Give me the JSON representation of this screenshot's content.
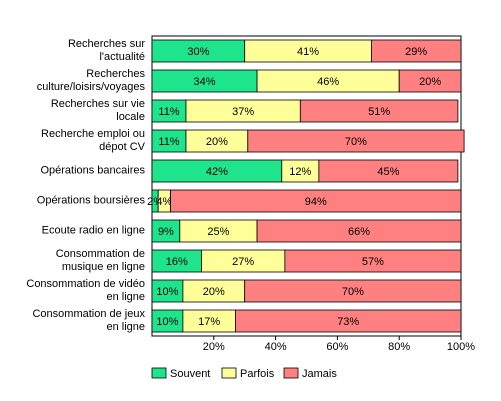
{
  "chart_data": {
    "type": "stacked-barh",
    "categories": [
      "Recherches sur\nl'actualité",
      "Recherches\nculture/loisirs/voyages",
      "Recherches sur vie\nlocale",
      "Recherche emploi ou\ndépot CV",
      "Opérations bancaires",
      "Opérations boursières",
      "Ecoute radio en ligne",
      "Consommation de\nmusique en ligne",
      "Consommation de vidéo\nen ligne",
      "Consommation de jeux\nen ligne"
    ],
    "series": [
      {
        "name": "Souvent",
        "color": "#1ee58c",
        "values": [
          30,
          34,
          11,
          11,
          42,
          2,
          9,
          16,
          10,
          10
        ],
        "value_labels": [
          "30%",
          "34%",
          "11%",
          "11%",
          "42%",
          "2%",
          "9%",
          "16%",
          "10%",
          "10%"
        ]
      },
      {
        "name": "Parfois",
        "color": "#ffff99",
        "values": [
          41,
          46,
          37,
          20,
          12,
          4,
          25,
          27,
          20,
          17
        ],
        "value_labels": [
          "41%",
          "46%",
          "37%",
          "20%",
          "12%",
          "4%",
          "25%",
          "27%",
          "20%",
          "17%"
        ]
      },
      {
        "name": "Jamais",
        "color": "#ff8080",
        "values": [
          29,
          20,
          51,
          70,
          45,
          94,
          66,
          57,
          70,
          73
        ],
        "value_labels": [
          "29%",
          "20%",
          "51%",
          "70%",
          "45%",
          "94%",
          "66%",
          "57%",
          "70%",
          "73%"
        ]
      }
    ],
    "xlim": [
      0,
      100
    ],
    "xticks": [
      {
        "value": 20,
        "label": "20%"
      },
      {
        "value": 40,
        "label": "40%"
      },
      {
        "value": 60,
        "label": "60%"
      },
      {
        "value": 80,
        "label": "80%"
      },
      {
        "value": 100,
        "label": "100%"
      }
    ],
    "legend": "bottom"
  }
}
